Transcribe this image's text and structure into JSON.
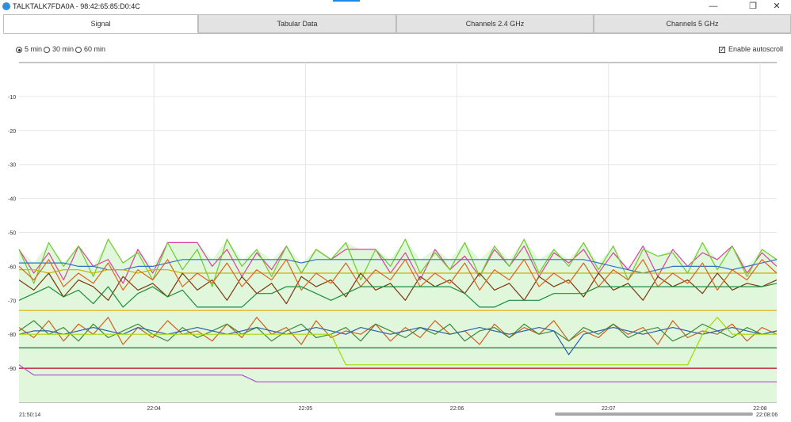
{
  "window": {
    "title": "TALKTALK7FDA0A - 98:42:65:85:D0:4C",
    "minimize": "—",
    "restore": "❐",
    "close": "✕"
  },
  "tabs": [
    {
      "label": "Signal",
      "active": true
    },
    {
      "label": "Tabular Data",
      "active": false
    },
    {
      "label": "Channels 2.4 GHz",
      "active": false
    },
    {
      "label": "Channels 5 GHz",
      "active": false
    }
  ],
  "time_range": {
    "options": [
      "5 min",
      "30 min",
      "60 min"
    ],
    "selected": "5 min"
  },
  "autoscroll": {
    "label": "Enable autoscroll",
    "checked": true
  },
  "range_labels": {
    "start": "21:50:14",
    "end": "22:08:06"
  },
  "chart_data": {
    "type": "line",
    "y_ticks": [
      -10,
      -20,
      -30,
      -40,
      -50,
      -60,
      -70,
      -80,
      -90
    ],
    "ylim": [
      -100,
      0
    ],
    "x_ticks": [
      "22:04",
      "22:05",
      "22:06",
      "22:07",
      "22:08"
    ],
    "x_tick_minutes": [
      4,
      5,
      6,
      7,
      8
    ],
    "xlim_minutes": [
      3.11,
      8.11
    ],
    "grid": true,
    "fill_color": "#e1f7dc",
    "series": [
      {
        "color": "#e040a0",
        "values": [
          -55,
          -62,
          -56,
          -64,
          -54,
          -60,
          -58,
          -65,
          -55,
          -62,
          -53,
          -53,
          -53,
          -60,
          -55,
          -63,
          -56,
          -61,
          -54,
          -62,
          -55,
          -58,
          -55,
          -55,
          -55,
          -62,
          -56,
          -64,
          -55,
          -61,
          -57,
          -63,
          -55,
          -60,
          -54,
          -63,
          -56,
          -59,
          -55,
          -62,
          -56,
          -61,
          -54,
          -63,
          -55,
          -60,
          -56,
          -58,
          -54,
          -62,
          -56,
          -60
        ]
      },
      {
        "color": "#6ccd2a",
        "values": [
          -55,
          -65,
          -53,
          -60,
          -54,
          -63,
          -52,
          -59,
          -56,
          -64,
          -53,
          -61,
          -55,
          -66,
          -52,
          -60,
          -55,
          -63,
          -54,
          -62,
          -55,
          -58,
          -53,
          -64,
          -55,
          -60,
          -52,
          -62,
          -56,
          -61,
          -53,
          -63,
          -54,
          -60,
          -52,
          -62,
          -55,
          -60,
          -53,
          -61,
          -54,
          -64,
          -55,
          -57,
          -56,
          -62,
          -53,
          -61,
          -54,
          -63,
          -55,
          -58
        ]
      },
      {
        "color": "#2f6fc6",
        "values": [
          -59,
          -59,
          -59,
          -59,
          -60,
          -60,
          -61,
          -61,
          -60,
          -60,
          -59,
          -58,
          -58,
          -58,
          -58,
          -58,
          -58,
          -58,
          -58,
          -59,
          -58,
          -58,
          -58,
          -58,
          -58,
          -58,
          -58,
          -58,
          -58,
          -58,
          -58,
          -58,
          -58,
          -58,
          -58,
          -58,
          -58,
          -58,
          -58,
          -59,
          -60,
          -61,
          -62,
          -61,
          -60,
          -60,
          -60,
          -60,
          -61,
          -60,
          -59,
          -58
        ]
      },
      {
        "color": "#c8b400",
        "values": [
          -61,
          -61,
          -62,
          -61,
          -61,
          -62,
          -61,
          -61,
          -62,
          -61,
          -61,
          -62,
          -62,
          -62,
          -62,
          -62,
          -62,
          -62,
          -62,
          -62,
          -62,
          -62,
          -62,
          -62,
          -62,
          -62,
          -62,
          -62,
          -62,
          -62,
          -62,
          -62,
          -62,
          -62,
          -62,
          -62,
          -62,
          -62,
          -62,
          -62,
          -62,
          -62,
          -62,
          -62,
          -62,
          -62,
          -62,
          -62,
          -62,
          -62,
          -62,
          -62
        ]
      },
      {
        "color": "#7a3a10",
        "values": [
          -64,
          -67,
          -62,
          -69,
          -64,
          -66,
          -70,
          -63,
          -67,
          -65,
          -69,
          -62,
          -67,
          -64,
          -70,
          -63,
          -68,
          -65,
          -71,
          -63,
          -66,
          -64,
          -69,
          -62,
          -67,
          -65,
          -70,
          -63,
          -66,
          -64,
          -68,
          -62,
          -67,
          -65,
          -70,
          -63,
          -66,
          -64,
          -69,
          -62,
          -67,
          -65,
          -70,
          -63,
          -66,
          -64,
          -68,
          -62,
          -67,
          -65,
          -66,
          -64
        ]
      },
      {
        "color": "#e0621e",
        "values": [
          -60,
          -64,
          -58,
          -66,
          -62,
          -65,
          -59,
          -67,
          -61,
          -64,
          -58,
          -66,
          -62,
          -65,
          -59,
          -66,
          -61,
          -64,
          -58,
          -67,
          -62,
          -65,
          -59,
          -66,
          -61,
          -64,
          -58,
          -66,
          -62,
          -65,
          -59,
          -67,
          -61,
          -64,
          -58,
          -66,
          -62,
          -65,
          -59,
          -66,
          -61,
          -64,
          -58,
          -66,
          -62,
          -65,
          -59,
          -67,
          -61,
          -64,
          -58,
          -62
        ]
      },
      {
        "color": "#1e8c3a",
        "values": [
          -70,
          -68,
          -66,
          -69,
          -67,
          -71,
          -66,
          -72,
          -68,
          -66,
          -69,
          -67,
          -72,
          -72,
          -72,
          -72,
          -68,
          -68,
          -66,
          -66,
          -68,
          -70,
          -68,
          -66,
          -66,
          -66,
          -66,
          -66,
          -66,
          -66,
          -68,
          -72,
          -72,
          -70,
          -70,
          -70,
          -68,
          -68,
          -68,
          -66,
          -66,
          -66,
          -66,
          -66,
          -66,
          -66,
          -66,
          -66,
          -66,
          -66,
          -66,
          -65
        ]
      },
      {
        "color": "#e0a800",
        "values": [
          -73,
          -73,
          -73,
          -73,
          -73,
          -73,
          -73,
          -73,
          -73,
          -73,
          -73,
          -73,
          -73,
          -73,
          -73,
          -73,
          -73,
          -73,
          -73,
          -73,
          -73,
          -73,
          -73,
          -73,
          -73,
          -73,
          -73,
          -73,
          -73,
          -73,
          -73,
          -73,
          -73,
          -73,
          -73,
          -73,
          -73,
          -73,
          -73,
          -73,
          -73,
          -73,
          -73,
          -73,
          -73,
          -73,
          -73,
          -73,
          -73,
          -73,
          -73,
          -73
        ]
      },
      {
        "color": "#d06020",
        "values": [
          -78,
          -81,
          -76,
          -82,
          -77,
          -80,
          -75,
          -83,
          -78,
          -81,
          -76,
          -80,
          -79,
          -82,
          -77,
          -81,
          -75,
          -80,
          -78,
          -83,
          -76,
          -81,
          -79,
          -80,
          -77,
          -82,
          -78,
          -81,
          -76,
          -80,
          -79,
          -83,
          -77,
          -81,
          -78,
          -80,
          -76,
          -82,
          -79,
          -81,
          -77,
          -80,
          -78,
          -83,
          -76,
          -81,
          -79,
          -80,
          -77,
          -82,
          -78,
          -80
        ]
      },
      {
        "color": "#3d8b3d",
        "values": [
          -79,
          -76,
          -80,
          -78,
          -82,
          -77,
          -81,
          -79,
          -77,
          -80,
          -82,
          -78,
          -81,
          -79,
          -77,
          -80,
          -78,
          -82,
          -79,
          -77,
          -81,
          -80,
          -78,
          -82,
          -77,
          -79,
          -81,
          -78,
          -80,
          -77,
          -82,
          -79,
          -78,
          -81,
          -77,
          -80,
          -79,
          -82,
          -78,
          -80,
          -77,
          -81,
          -79,
          -78,
          -82,
          -80,
          -77,
          -79,
          -81,
          -78,
          -80,
          -79
        ]
      },
      {
        "color": "#2a5fa8",
        "values": [
          -80,
          -79,
          -79,
          -80,
          -79,
          -78,
          -79,
          -80,
          -78,
          -79,
          -80,
          -79,
          -78,
          -79,
          -80,
          -79,
          -78,
          -79,
          -80,
          -79,
          -78,
          -79,
          -80,
          -78,
          -79,
          -80,
          -79,
          -78,
          -79,
          -80,
          -79,
          -78,
          -79,
          -80,
          -79,
          -78,
          -79,
          -86,
          -80,
          -79,
          -78,
          -79,
          -80,
          -79,
          -78,
          -79,
          -80,
          -79,
          -78,
          -79,
          -80,
          -79
        ]
      },
      {
        "color": "#0f7a3a",
        "values": [
          -84,
          -84,
          -84,
          -84,
          -84,
          -84,
          -84,
          -84,
          -84,
          -84,
          -84,
          -84,
          -84,
          -84,
          -84,
          -84,
          -84,
          -84,
          -84,
          -84,
          -84,
          -84,
          -84,
          -84,
          -84,
          -84,
          -84,
          -84,
          -84,
          -84,
          -84,
          -84,
          -84,
          -84,
          -84,
          -84,
          -84,
          -84,
          -84,
          -84,
          -84,
          -84,
          -84,
          -84,
          -84,
          -84,
          -84,
          -84,
          -84,
          -84,
          -84,
          -84
        ]
      },
      {
        "color": "#a8d800",
        "values": [
          -80,
          -80,
          -80,
          -80,
          -80,
          -80,
          -80,
          -80,
          -80,
          -80,
          -80,
          -80,
          -80,
          -80,
          -80,
          -80,
          -80,
          -80,
          -80,
          -80,
          -80,
          -80,
          -89,
          -89,
          -89,
          -89,
          -89,
          -89,
          -89,
          -89,
          -89,
          -89,
          -89,
          -89,
          -89,
          -89,
          -89,
          -89,
          -89,
          -89,
          -89,
          -89,
          -89,
          -89,
          -89,
          -89,
          -80,
          -75,
          -80,
          -80,
          -80,
          -80
        ]
      },
      {
        "color": "#c00020",
        "values": [
          -90,
          -90,
          -90,
          -90,
          -90,
          -90,
          -90,
          -90,
          -90,
          -90,
          -90,
          -90,
          -90,
          -90,
          -90,
          -90,
          -90,
          -90,
          -90,
          -90,
          -90,
          -90,
          -90,
          -90,
          -90,
          -90,
          -90,
          -90,
          -90,
          -90,
          -90,
          -90,
          -90,
          -90,
          -90,
          -90,
          -90,
          -90,
          -90,
          -90,
          -90,
          -90,
          -90,
          -90,
          -90,
          -90,
          -90,
          -90,
          -90,
          -90,
          -90,
          -90
        ]
      },
      {
        "color": "#b050d0",
        "values": [
          -89,
          -92,
          -92,
          -92,
          -92,
          -92,
          -92,
          -92,
          -92,
          -92,
          -92,
          -92,
          -92,
          -92,
          -92,
          -92,
          -94,
          -94,
          -94,
          -94,
          -94,
          -94,
          -94,
          -94,
          -94,
          -94,
          -94,
          -94,
          -94,
          -94,
          -94,
          -94,
          -94,
          -94,
          -94,
          -94,
          -94,
          -94,
          -94,
          -94,
          -94,
          -94,
          -94,
          -94,
          -94,
          -94,
          -94,
          -94,
          -94,
          -94,
          -94,
          -94
        ]
      }
    ]
  }
}
